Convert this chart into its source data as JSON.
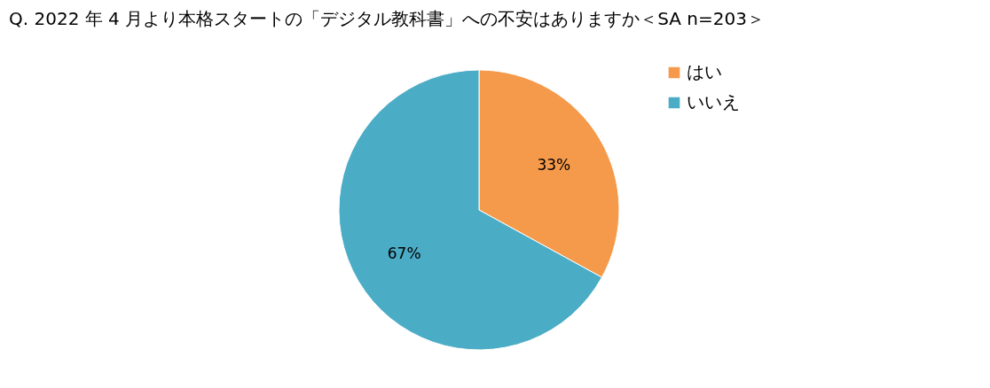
{
  "chart_data": {
    "type": "pie",
    "title": "Q. 2022 年 4 月より本格スタートの「デジタル教科書」への不安はありますか＜SA n=203＞",
    "categories": [
      "はい",
      "いいえ"
    ],
    "values": [
      33,
      67
    ],
    "colors": [
      "#f59a4a",
      "#4bacc6"
    ],
    "value_labels": [
      "33%",
      "67%"
    ],
    "legend": "right"
  }
}
